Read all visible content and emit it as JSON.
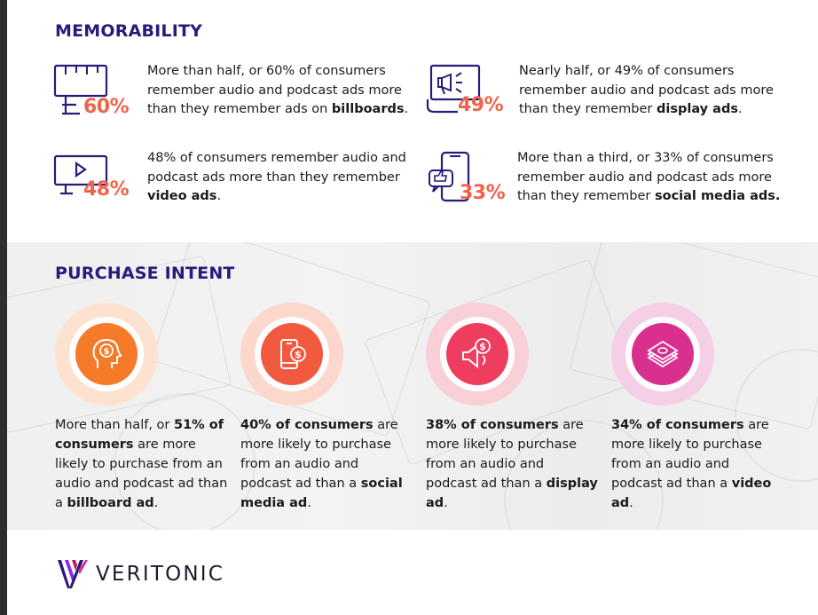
{
  "memorability": {
    "title": "MEMORABILITY",
    "stats": [
      {
        "icon": "billboard-icon",
        "percent": "60%",
        "parts": [
          {
            "t": "More than half, or 60% of consumers remember audio and podcast ads more than they remember ads on ",
            "b": false
          },
          {
            "t": "billboards",
            "b": true
          },
          {
            "t": ".",
            "b": false
          }
        ]
      },
      {
        "icon": "display-ad-megaphone-icon",
        "percent": "49%",
        "parts": [
          {
            "t": "Nearly half, or 49% of consumers remember audio and podcast ads more than they remember ",
            "b": false
          },
          {
            "t": "display ads",
            "b": true
          },
          {
            "t": ".",
            "b": false
          }
        ]
      },
      {
        "icon": "video-play-icon",
        "percent": "48%",
        "parts": [
          {
            "t": "48% of consumers remember audio and podcast ads more than they remember ",
            "b": false
          },
          {
            "t": "video ads",
            "b": true
          },
          {
            "t": ".",
            "b": false
          }
        ]
      },
      {
        "icon": "social-thumbs-up-icon",
        "percent": "33%",
        "parts": [
          {
            "t": "More than a third, or 33% of consumers remember audio and podcast ads more than they remember ",
            "b": false
          },
          {
            "t": "social media ads.",
            "b": true
          }
        ]
      }
    ]
  },
  "purchase_intent": {
    "title": "PURCHASE INTENT",
    "items": [
      {
        "icon": "head-dollar-icon",
        "halo_color": "#fde3cf",
        "inner_color": "#f57a2a",
        "parts": [
          {
            "t": "More than half, or ",
            "b": false
          },
          {
            "t": "51% of consumers",
            "b": true
          },
          {
            "t": " are more likely to purchase from an audio and podcast ad than a ",
            "b": false
          },
          {
            "t": "billboard ad",
            "b": true
          },
          {
            "t": ".",
            "b": false
          }
        ]
      },
      {
        "icon": "phone-dollar-icon",
        "halo_color": "#fcd7cc",
        "inner_color": "#f15a3f",
        "parts": [
          {
            "t": "40% of consumers",
            "b": true
          },
          {
            "t": " are more likely to purchase from an audio and podcast ad than a ",
            "b": false
          },
          {
            "t": "social media ad",
            "b": true
          },
          {
            "t": ".",
            "b": false
          }
        ]
      },
      {
        "icon": "speaker-dollar-icon",
        "halo_color": "#f9d0d6",
        "inner_color": "#ee3d5e",
        "parts": [
          {
            "t": "38% of consumers",
            "b": true
          },
          {
            "t": " are more likely to purchase from an audio and podcast ad than a ",
            "b": false
          },
          {
            "t": "display ad",
            "b": true
          },
          {
            "t": ".",
            "b": false
          }
        ]
      },
      {
        "icon": "money-stack-icon",
        "halo_color": "#f5cfe6",
        "inner_color": "#d9308f",
        "parts": [
          {
            "t": "34% of consumers",
            "b": true
          },
          {
            "t": " are more likely to purchase from an audio and podcast ad than a ",
            "b": false
          },
          {
            "t": "video ad",
            "b": true
          },
          {
            "t": ".",
            "b": false
          }
        ]
      }
    ]
  },
  "brand": {
    "name": "VERITONIC",
    "logo_icon": "veritonic-v-logo-icon"
  },
  "colors": {
    "title": "#2a1a7a",
    "percent": "#f0644a",
    "icon_stroke": "#2a1a7a"
  }
}
